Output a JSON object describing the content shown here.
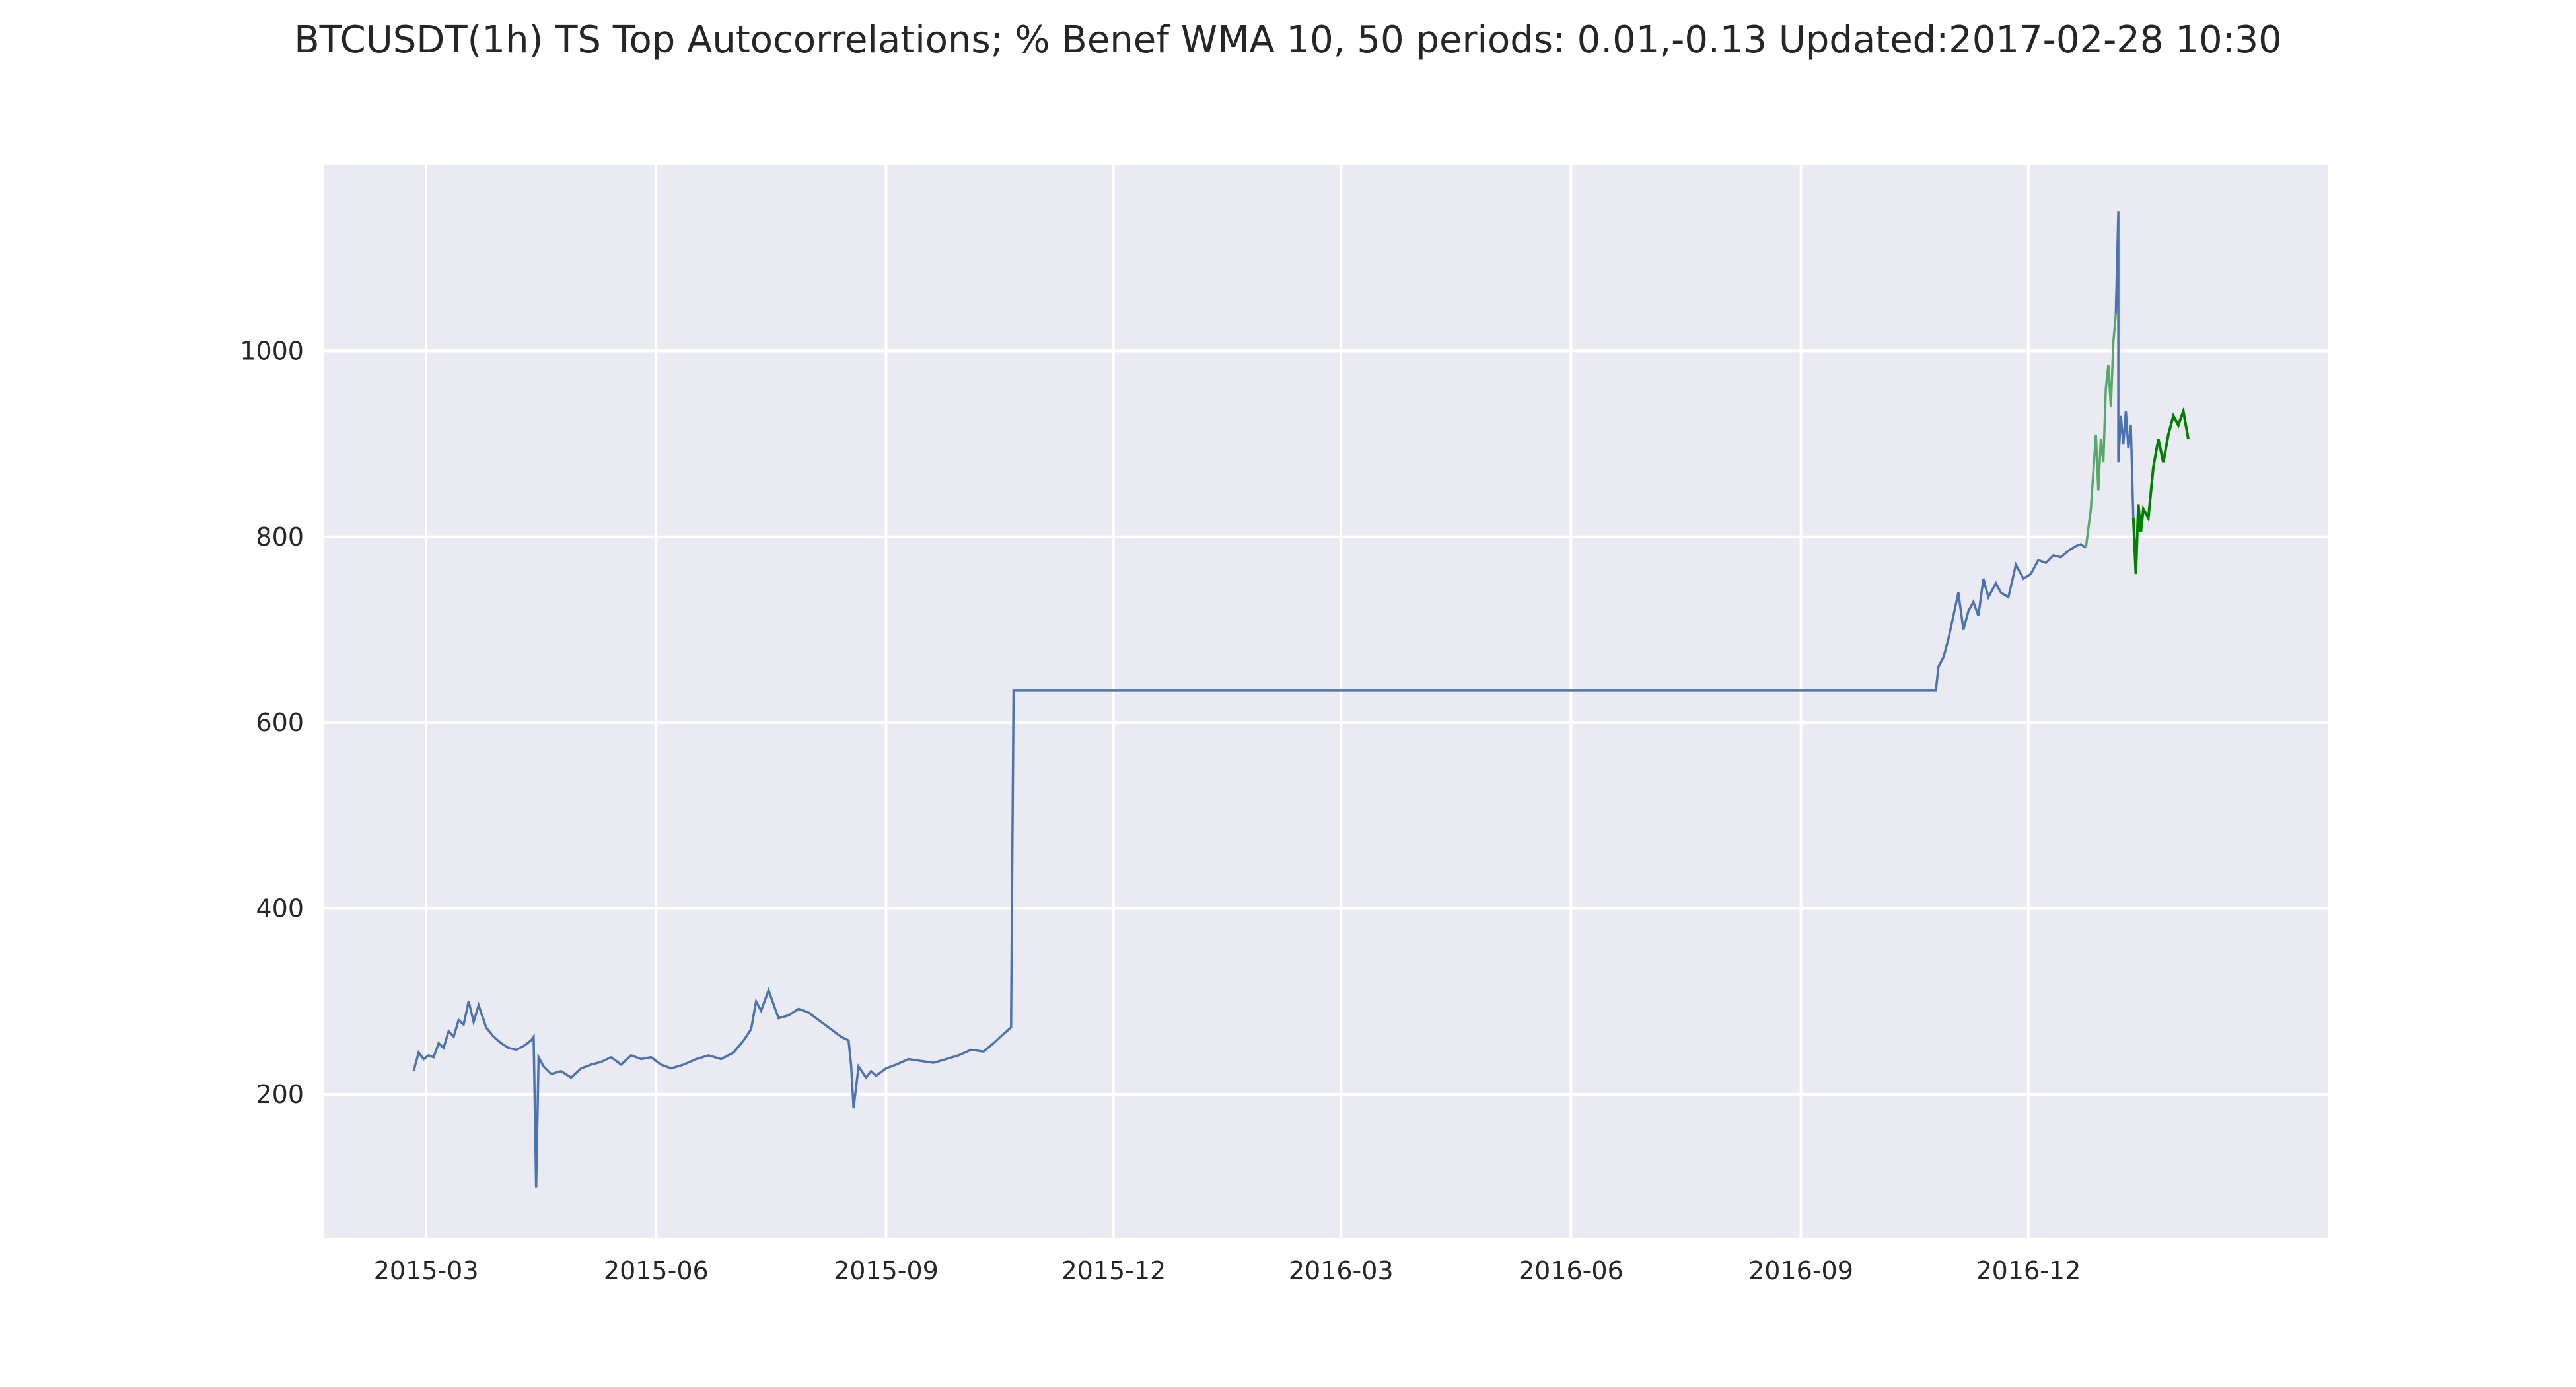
{
  "chart_data": {
    "type": "line",
    "title": "BTCUSDT(1h) TS Top Autocorrelations; % Benef WMA 10, 50 periods: 0.01,-0.13 Updated:2017-02-28 10:30",
    "xlabel": "",
    "ylabel": "",
    "x_ticks": [
      "2015-03",
      "2015-06",
      "2015-09",
      "2015-12",
      "2016-03",
      "2016-06",
      "2016-09",
      "2016-12"
    ],
    "y_ticks": [
      200,
      400,
      600,
      800,
      1000
    ],
    "xlim": [
      "2015-01-19",
      "2017-03-31"
    ],
    "ylim": [
      45,
      1200
    ],
    "grid": true,
    "background": "#EAEAF2",
    "series": [
      {
        "color": "#4C72B0",
        "x": [
          "2015-02-24",
          "2015-02-26",
          "2015-02-28",
          "2015-03-02",
          "2015-03-04",
          "2015-03-06",
          "2015-03-08",
          "2015-03-10",
          "2015-03-12",
          "2015-03-14",
          "2015-03-16",
          "2015-03-18",
          "2015-03-20",
          "2015-03-22",
          "2015-03-25",
          "2015-03-28",
          "2015-03-31",
          "2015-04-03",
          "2015-04-06",
          "2015-04-09",
          "2015-04-12",
          "2015-04-13",
          "2015-04-14",
          "2015-04-15",
          "2015-04-17",
          "2015-04-20",
          "2015-04-24",
          "2015-04-28",
          "2015-05-02",
          "2015-05-06",
          "2015-05-10",
          "2015-05-14",
          "2015-05-18",
          "2015-05-22",
          "2015-05-26",
          "2015-05-30",
          "2015-06-03",
          "2015-06-07",
          "2015-06-12",
          "2015-06-17",
          "2015-06-22",
          "2015-06-27",
          "2015-07-02",
          "2015-07-06",
          "2015-07-09",
          "2015-07-11",
          "2015-07-13",
          "2015-07-16",
          "2015-07-20",
          "2015-07-24",
          "2015-07-28",
          "2015-08-01",
          "2015-08-05",
          "2015-08-10",
          "2015-08-14",
          "2015-08-17",
          "2015-08-18",
          "2015-08-19",
          "2015-08-21",
          "2015-08-24",
          "2015-08-26",
          "2015-08-28",
          "2015-09-01",
          "2015-09-05",
          "2015-09-10",
          "2015-09-15",
          "2015-09-20",
          "2015-09-25",
          "2015-09-30",
          "2015-10-05",
          "2015-10-10",
          "2015-10-14",
          "2015-10-18",
          "2015-10-21",
          "2015-10-22",
          "2016-10-25",
          "2016-10-26",
          "2016-10-28",
          "2016-10-30",
          "2016-11-01",
          "2016-11-03",
          "2016-11-05",
          "2016-11-07",
          "2016-11-09",
          "2016-11-11",
          "2016-11-13",
          "2016-11-15",
          "2016-11-18",
          "2016-11-20",
          "2016-11-23",
          "2016-11-26",
          "2016-11-29",
          "2016-12-02",
          "2016-12-05",
          "2016-12-08",
          "2016-12-11",
          "2016-12-14",
          "2016-12-17",
          "2016-12-20",
          "2016-12-22",
          "2016-12-24"
        ],
        "values": [
          225,
          245,
          238,
          242,
          240,
          255,
          250,
          268,
          262,
          280,
          275,
          300,
          278,
          296,
          272,
          262,
          255,
          250,
          248,
          252,
          258,
          262,
          100,
          240,
          230,
          222,
          225,
          218,
          228,
          232,
          235,
          240,
          232,
          242,
          238,
          240,
          232,
          228,
          232,
          238,
          242,
          238,
          245,
          258,
          270,
          300,
          290,
          312,
          282,
          285,
          292,
          288,
          280,
          270,
          262,
          258,
          232,
          185,
          230,
          218,
          225,
          220,
          228,
          232,
          238,
          236,
          234,
          238,
          242,
          248,
          246,
          255,
          265,
          272,
          635,
          635,
          660,
          670,
          690,
          715,
          740,
          700,
          720,
          730,
          715,
          755,
          735,
          750,
          740,
          735,
          770,
          755,
          760,
          775,
          772,
          780,
          778,
          785,
          790,
          792,
          788
        ]
      },
      {
        "color": "#55A868",
        "x": [
          "2016-12-24",
          "2016-12-26",
          "2016-12-28",
          "2016-12-29",
          "2016-12-30",
          "2016-12-31",
          "2017-01-01",
          "2017-01-02",
          "2017-01-03",
          "2017-01-04",
          "2017-01-05"
        ],
        "values": [
          788,
          830,
          910,
          850,
          905,
          880,
          960,
          985,
          940,
          1010,
          1040
        ]
      },
      {
        "color": "#4C72B0",
        "x": [
          "2017-01-05",
          "2017-01-06",
          "2017-01-06",
          "2017-01-07",
          "2017-01-08",
          "2017-01-09",
          "2017-01-10",
          "2017-01-11",
          "2017-01-12"
        ],
        "values": [
          1040,
          1150,
          880,
          930,
          900,
          935,
          895,
          920,
          820
        ]
      },
      {
        "color": "#008000",
        "x": [
          "2017-01-12",
          "2017-01-13",
          "2017-01-14",
          "2017-01-15",
          "2017-01-16",
          "2017-01-18",
          "2017-01-20",
          "2017-01-22",
          "2017-01-24",
          "2017-01-26",
          "2017-01-28",
          "2017-01-30",
          "2017-02-01",
          "2017-02-03"
        ],
        "values": [
          820,
          760,
          835,
          805,
          830,
          820,
          875,
          905,
          880,
          910,
          930,
          920,
          935,
          905
        ]
      }
    ]
  }
}
